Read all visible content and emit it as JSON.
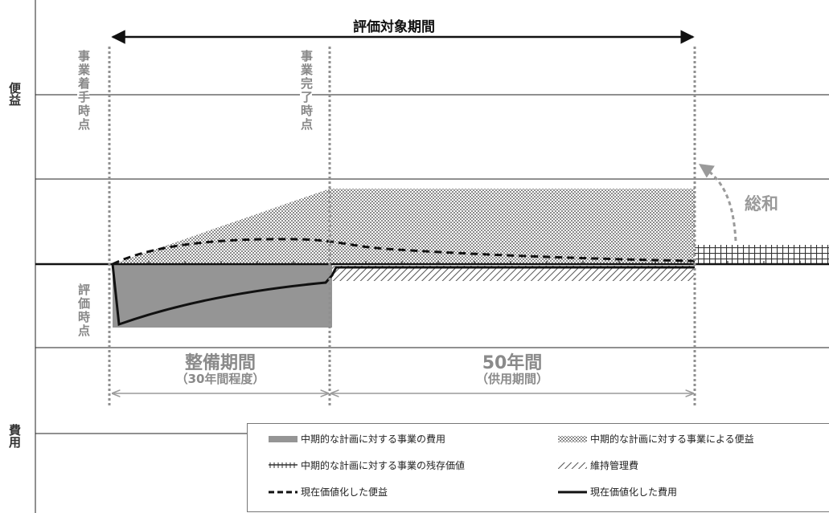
{
  "title": "評価対象期間",
  "axis_labels": {
    "benefit": "便益",
    "cost": "費用"
  },
  "event_labels": {
    "start": "事業着手時点",
    "completion": "事業完了時点",
    "evaluation": "評価時点"
  },
  "periods": {
    "construction": {
      "label": "整備期間",
      "sublabel": "（30年間程度）"
    },
    "service": {
      "label": "50年間",
      "sublabel": "（供用期間）"
    }
  },
  "sum_label": "総和",
  "legend": [
    {
      "key": "cost",
      "label": "中期的な計画に対する事業の費用",
      "swatch": "solid-gray"
    },
    {
      "key": "benefit",
      "label": "中期的な計画に対する事業による便益",
      "swatch": "dotted-gray"
    },
    {
      "key": "residual",
      "label": "中期的な計画に対する事業の残存価値",
      "swatch": "tick-line"
    },
    {
      "key": "maintenance",
      "label": "維持管理費",
      "swatch": "hatch"
    },
    {
      "key": "pv_benefit",
      "label": "現在価値化した便益",
      "swatch": "dashed-line"
    },
    {
      "key": "pv_cost",
      "label": "現在価値化した費用",
      "swatch": "solid-line"
    }
  ],
  "colors": {
    "cost_fill": "#959595",
    "benefit_fill": "#c9c9c9",
    "marker_line": "#8f8f8f",
    "text_gray": "#8a8a8a"
  }
}
